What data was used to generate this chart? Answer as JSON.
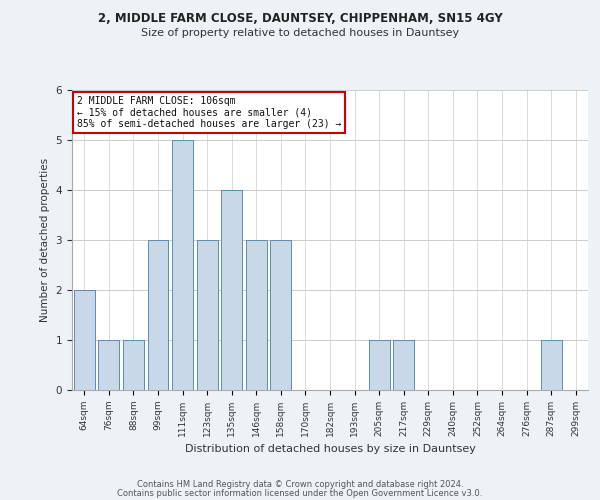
{
  "title1": "2, MIDDLE FARM CLOSE, DAUNTSEY, CHIPPENHAM, SN15 4GY",
  "title2": "Size of property relative to detached houses in Dauntsey",
  "xlabel": "Distribution of detached houses by size in Dauntsey",
  "ylabel": "Number of detached properties",
  "categories": [
    "64sqm",
    "76sqm",
    "88sqm",
    "99sqm",
    "111sqm",
    "123sqm",
    "135sqm",
    "146sqm",
    "158sqm",
    "170sqm",
    "182sqm",
    "193sqm",
    "205sqm",
    "217sqm",
    "229sqm",
    "240sqm",
    "252sqm",
    "264sqm",
    "276sqm",
    "287sqm",
    "299sqm"
  ],
  "values": [
    2,
    1,
    1,
    3,
    5,
    3,
    4,
    3,
    3,
    0,
    0,
    0,
    1,
    1,
    0,
    0,
    0,
    0,
    0,
    1,
    0
  ],
  "bar_color": "#c8d8e8",
  "bar_edge_color": "#5b8db0",
  "annotation_text": "2 MIDDLE FARM CLOSE: 106sqm\n← 15% of detached houses are smaller (4)\n85% of semi-detached houses are larger (23) →",
  "annotation_box_color": "#ffffff",
  "annotation_box_edge": "#cc0000",
  "footer1": "Contains HM Land Registry data © Crown copyright and database right 2024.",
  "footer2": "Contains public sector information licensed under the Open Government Licence v3.0.",
  "ylim": [
    0,
    6
  ],
  "background_color": "#edf2f7",
  "plot_bg_color": "#ffffff"
}
